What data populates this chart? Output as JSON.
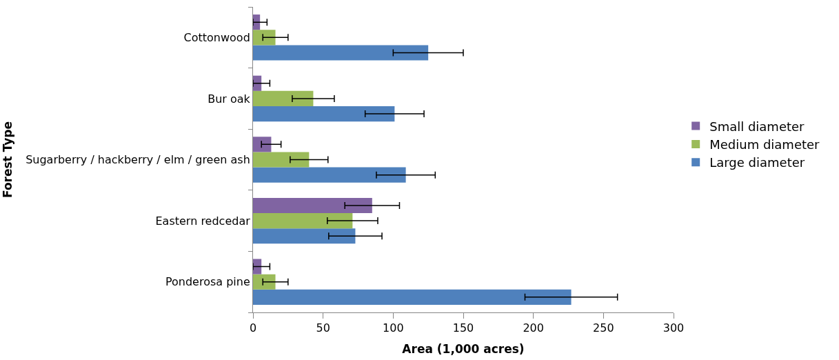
{
  "chart_data": {
    "type": "bar",
    "orientation": "horizontal",
    "xlabel": "Area (1,000 acres)",
    "ylabel": "Forest Type",
    "categories": [
      "Cottonwood",
      "Bur oak",
      "Sugarberry / hackberry / elm / green ash",
      "Eastern redcedar",
      "Ponderosa pine"
    ],
    "series": [
      {
        "name": "Small diameter",
        "color": "#8064a2",
        "values": [
          5,
          6,
          13,
          85,
          6
        ],
        "errors": [
          5,
          6,
          7,
          19.5,
          6
        ]
      },
      {
        "name": "Medium diameter",
        "color": "#9bbb59",
        "values": [
          16,
          43,
          40,
          71,
          16
        ],
        "errors": [
          9,
          15,
          13.5,
          18,
          9
        ]
      },
      {
        "name": "Large diameter",
        "color": "#4f81bd",
        "values": [
          125,
          101,
          109,
          73,
          227
        ],
        "errors": [
          25,
          21,
          21,
          19,
          33
        ]
      }
    ],
    "xlim": [
      0,
      300
    ],
    "xticks": [
      0,
      50,
      100,
      150,
      200,
      250,
      300
    ],
    "grid": false,
    "legend": "right"
  }
}
